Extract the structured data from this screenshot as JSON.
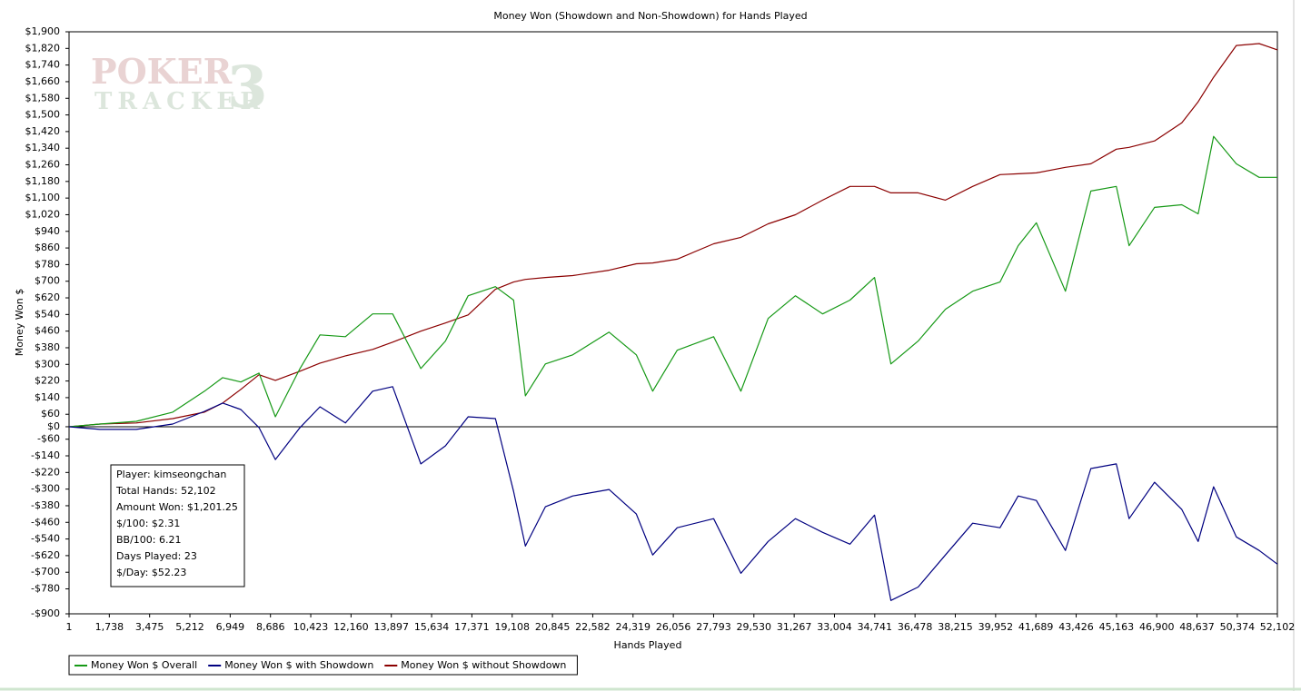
{
  "chart_data": {
    "type": "line",
    "title": "Money Won (Showdown and Non-Showdown) for Hands Played",
    "x_label": "Hands Played",
    "y_label": "Money Won $",
    "watermark": {
      "line1": "POKER",
      "line2": "TRACKER",
      "mark": "3"
    },
    "info": [
      "Player: kimseongchan",
      "Total Hands: 52,102",
      "Amount Won: $1,201.25",
      "$/100: $2.31",
      "BB/100: 6.21",
      "Days Played: 23",
      "$/Day: $52.23"
    ],
    "xlim": [
      1,
      52102
    ],
    "ylim": [
      -900,
      1900
    ],
    "grid": false,
    "xticks": [
      1,
      {
        "value": 1738,
        "label": "1,738"
      },
      {
        "value": 3475,
        "label": "3,475"
      },
      {
        "value": 5212,
        "label": "5,212"
      },
      {
        "value": 6949,
        "label": "6,949"
      },
      {
        "value": 8686,
        "label": "8,686"
      },
      {
        "value": 10423,
        "label": "10,423"
      },
      {
        "value": 12160,
        "label": "12,160"
      },
      {
        "value": 13897,
        "label": "13,897"
      },
      {
        "value": 15634,
        "label": "15,634"
      },
      {
        "value": 17371,
        "label": "17,371"
      },
      {
        "value": 19108,
        "label": "19,108"
      },
      {
        "value": 20845,
        "label": "20,845"
      },
      {
        "value": 22582,
        "label": "22,582"
      },
      {
        "value": 24319,
        "label": "24,319"
      },
      {
        "value": 26056,
        "label": "26,056"
      },
      {
        "value": 27793,
        "label": "27,793"
      },
      {
        "value": 29530,
        "label": "29,530"
      },
      {
        "value": 31267,
        "label": "31,267"
      },
      {
        "value": 33004,
        "label": "33,004"
      },
      {
        "value": 34741,
        "label": "34,741"
      },
      {
        "value": 36478,
        "label": "36,478"
      },
      {
        "value": 38215,
        "label": "38,215"
      },
      {
        "value": 39952,
        "label": "39,952"
      },
      {
        "value": 41689,
        "label": "41,689"
      },
      {
        "value": 43426,
        "label": "43,426"
      },
      {
        "value": 45163,
        "label": "45,163"
      },
      {
        "value": 46900,
        "label": "46,900"
      },
      {
        "value": 48637,
        "label": "48,637"
      },
      {
        "value": 50374,
        "label": "50,374"
      },
      {
        "value": 52102,
        "label": "52,102"
      }
    ],
    "yticks": [
      {
        "value": 1900,
        "label": "$1,900"
      },
      {
        "value": 1820,
        "label": "$1,820"
      },
      {
        "value": 1740,
        "label": "$1,740"
      },
      {
        "value": 1660,
        "label": "$1,660"
      },
      {
        "value": 1580,
        "label": "$1,580"
      },
      {
        "value": 1500,
        "label": "$1,500"
      },
      {
        "value": 1420,
        "label": "$1,420"
      },
      {
        "value": 1340,
        "label": "$1,340"
      },
      {
        "value": 1260,
        "label": "$1,260"
      },
      {
        "value": 1180,
        "label": "$1,180"
      },
      {
        "value": 1100,
        "label": "$1,100"
      },
      {
        "value": 1020,
        "label": "$1,020"
      },
      {
        "value": 940,
        "label": "$940"
      },
      {
        "value": 860,
        "label": "$860"
      },
      {
        "value": 780,
        "label": "$780"
      },
      {
        "value": 700,
        "label": "$700"
      },
      {
        "value": 620,
        "label": "$620"
      },
      {
        "value": 540,
        "label": "$540"
      },
      {
        "value": 460,
        "label": "$460"
      },
      {
        "value": 380,
        "label": "$380"
      },
      {
        "value": 300,
        "label": "$300"
      },
      {
        "value": 220,
        "label": "$220"
      },
      {
        "value": 140,
        "label": "$140"
      },
      {
        "value": 60,
        "label": "$60"
      },
      {
        "value": 0,
        "label": "$0"
      },
      {
        "value": -60,
        "label": "-$60"
      },
      {
        "value": -140,
        "label": "-$140"
      },
      {
        "value": -220,
        "label": "-$220"
      },
      {
        "value": -300,
        "label": "-$300"
      },
      {
        "value": -380,
        "label": "-$380"
      },
      {
        "value": -460,
        "label": "-$460"
      },
      {
        "value": -540,
        "label": "-$540"
      },
      {
        "value": -620,
        "label": "-$620"
      },
      {
        "value": -700,
        "label": "-$700"
      },
      {
        "value": -780,
        "label": "-$780"
      },
      {
        "value": -900,
        "label": "-$900"
      }
    ],
    "x": [
      1,
      1333,
      2901,
      4469,
      5841,
      6625,
      7409,
      8193,
      8898,
      9957,
      10819,
      11917,
      13093,
      13955,
      15170,
      16229,
      17209,
      18385,
      19169,
      19678,
      20541,
      21717,
      23285,
      24461,
      25166,
      26225,
      27793,
      28969,
      30145,
      31321,
      32497,
      33673,
      34731,
      35437,
      36613,
      37789,
      38965,
      40141,
      40925,
      41709,
      42963,
      44061,
      45158,
      45707,
      46805,
      47981,
      48686,
      49353,
      50333,
      51313,
      52102
    ],
    "series": [
      {
        "name": "Money Won $ Overall",
        "color": "#169916",
        "values": [
          0,
          13,
          26,
          70,
          171,
          236,
          215,
          258,
          48,
          280,
          442,
          433,
          543,
          543,
          280,
          412,
          630,
          674,
          609,
          149,
          302,
          346,
          455,
          346,
          171,
          368,
          433,
          171,
          521,
          630,
          543,
          609,
          718,
          302,
          412,
          565,
          652,
          696,
          871,
          981,
          652,
          1134,
          1156,
          871,
          1055,
          1068,
          1024,
          1397,
          1265,
          1200,
          1200
        ]
      },
      {
        "name": "Money Won $ with Showdown",
        "color": "#000080",
        "values": [
          0,
          -13,
          -13,
          13,
          74,
          114,
          83,
          -4,
          -158,
          -4,
          96,
          18,
          171,
          193,
          -179,
          -92,
          48,
          39,
          -311,
          -574,
          -385,
          -333,
          -302,
          -420,
          -617,
          -486,
          -442,
          -705,
          -552,
          -442,
          -508,
          -565,
          -425,
          -836,
          -771,
          -617,
          -464,
          -486,
          -333,
          -355,
          -595,
          -201,
          -179,
          -442,
          -267,
          -398,
          -552,
          -289,
          -530,
          -595,
          -661
        ]
      },
      {
        "name": "Money Won $ without Showdown",
        "color": "#8b0000",
        "values": [
          0,
          13,
          18,
          39,
          70,
          114,
          180,
          250,
          223,
          267,
          306,
          341,
          372,
          407,
          460,
          499,
          538,
          661,
          696,
          709,
          718,
          727,
          753,
          784,
          788,
          806,
          880,
          911,
          976,
          1020,
          1090,
          1156,
          1156,
          1125,
          1125,
          1090,
          1156,
          1213,
          1217,
          1221,
          1248,
          1265,
          1335,
          1344,
          1375,
          1462,
          1563,
          1681,
          1834,
          1843,
          1813
        ]
      }
    ]
  }
}
